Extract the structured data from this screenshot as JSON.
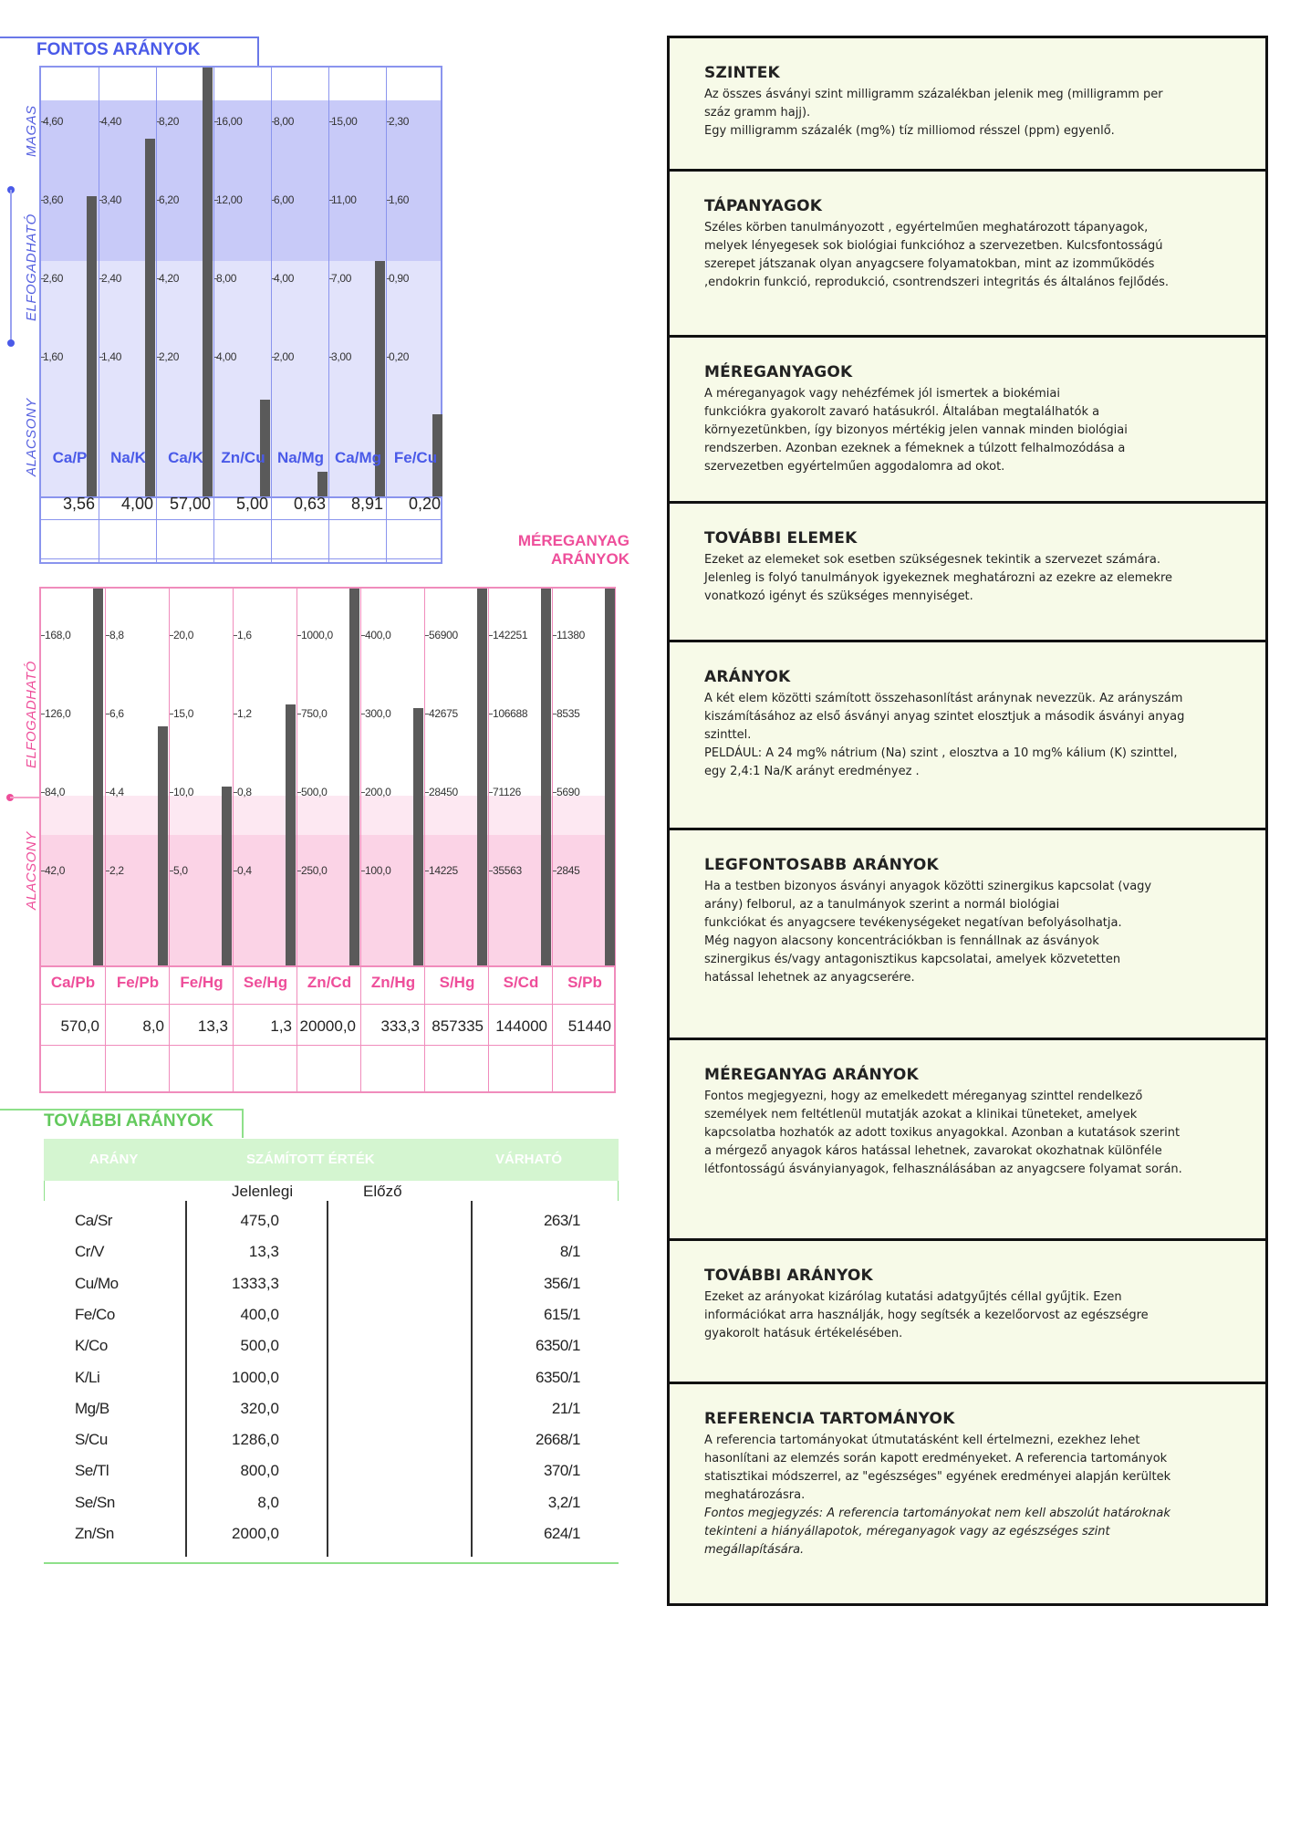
{
  "important": {
    "title": "FONTOS ARÁNYOK",
    "side_labels": [
      "MAGAS",
      "ELFOGADHATÓ",
      "ALACSONY"
    ],
    "colors": {
      "accent": "#4a5ae8",
      "band_high": "#c8caf8",
      "band_mid": "#e2e3fb",
      "bar": "#5a5a5a"
    },
    "columns": [
      {
        "name": "Ca/P",
        "ticks": [
          "4,60",
          "3,60",
          "2,60",
          "1,60"
        ],
        "value": "3,56"
      },
      {
        "name": "Na/K",
        "ticks": [
          "4,40",
          "3,40",
          "2,40",
          "1,40"
        ],
        "value": "4,00"
      },
      {
        "name": "Ca/K",
        "ticks": [
          "8,20",
          "6,20",
          "4,20",
          "2,20"
        ],
        "value": "57,00"
      },
      {
        "name": "Zn/Cu",
        "ticks": [
          "16,00",
          "12,00",
          "8,00",
          "4,00"
        ],
        "value": "5,00"
      },
      {
        "name": "Na/Mg",
        "ticks": [
          "8,00",
          "6,00",
          "4,00",
          "2,00"
        ],
        "value": "0,63"
      },
      {
        "name": "Ca/Mg",
        "ticks": [
          "15,00",
          "11,00",
          "7,00",
          "3,00"
        ],
        "value": "8,91"
      },
      {
        "name": "Fe/Cu",
        "ticks": [
          "2,30",
          "1,60",
          "0,90",
          "0,20"
        ],
        "value": "0,20"
      }
    ],
    "bar_levels": [
      0.84,
      1.0,
      1.2,
      0.27,
      0.07,
      0.66,
      0.23
    ]
  },
  "toxic": {
    "title": "MÉREGANYAG ARÁNYOK",
    "side_labels": [
      "ELFOGADHATÓ",
      "ALACSONY"
    ],
    "colors": {
      "accent": "#ee4e9a",
      "band_low": "#fbd3e6",
      "band_mid": "#fde8f2",
      "bar": "#5a5a5a"
    },
    "columns": [
      {
        "name": "Ca/Pb",
        "ticks": [
          "168,0",
          "126,0",
          "84,0",
          "42,0"
        ],
        "value": "570,0"
      },
      {
        "name": "Fe/Pb",
        "ticks": [
          "8,8",
          "6,6",
          "4,4",
          "2,2"
        ],
        "value": "8,0"
      },
      {
        "name": "Fe/Hg",
        "ticks": [
          "20,0",
          "15,0",
          "10,0",
          "5,0"
        ],
        "value": "13,3"
      },
      {
        "name": "Se/Hg",
        "ticks": [
          "1,6",
          "1,2",
          "0,8",
          "0,4"
        ],
        "value": "1,3"
      },
      {
        "name": "Zn/Cd",
        "ticks": [
          "1000,0",
          "750,0",
          "500,0",
          "250,0"
        ],
        "value": "20000,0"
      },
      {
        "name": "Zn/Hg",
        "ticks": [
          "400,0",
          "300,0",
          "200,0",
          "100,0"
        ],
        "value": "333,3"
      },
      {
        "name": "S/Hg",
        "ticks": [
          "56900",
          "42675",
          "28450",
          "14225"
        ],
        "value": "857335"
      },
      {
        "name": "S/Cd",
        "ticks": [
          "142251",
          "106688",
          "71126",
          "35563"
        ],
        "value": "144000"
      },
      {
        "name": "S/Pb",
        "ticks": [
          "11380",
          "8535",
          "5690",
          "2845"
        ],
        "value": "51440"
      }
    ],
    "bar_levels": [
      1.2,
      0.76,
      0.57,
      0.83,
      1.2,
      0.82,
      1.2,
      1.2,
      1.2
    ]
  },
  "more": {
    "title": "TOVÁBBI ARÁNYOK",
    "headers": {
      "ratio": "ARÁNY",
      "calc": "SZÁMÍTOTT ÉRTÉK",
      "expected": "VÁRHATÓ",
      "current": "Jelenlegi",
      "previous": "Előző"
    },
    "header_color": "#d4f5d0",
    "rows": [
      {
        "ratio": "Ca/Sr",
        "current": "475,0",
        "expected": "263/1"
      },
      {
        "ratio": "Cr/V",
        "current": "13,3",
        "expected": "8/1"
      },
      {
        "ratio": "Cu/Mo",
        "current": "1333,3",
        "expected": "356/1"
      },
      {
        "ratio": "Fe/Co",
        "current": "400,0",
        "expected": "615/1"
      },
      {
        "ratio": "K/Co",
        "current": "500,0",
        "expected": "6350/1"
      },
      {
        "ratio": "K/Li",
        "current": "1000,0",
        "expected": "6350/1"
      },
      {
        "ratio": "Mg/B",
        "current": "320,0",
        "expected": "21/1"
      },
      {
        "ratio": "S/Cu",
        "current": "1286,0",
        "expected": "2668/1"
      },
      {
        "ratio": "Se/Tl",
        "current": "800,0",
        "expected": "370/1"
      },
      {
        "ratio": "Se/Sn",
        "current": "8,0",
        "expected": "3,2/1"
      },
      {
        "ratio": "Zn/Sn",
        "current": "2000,0",
        "expected": "624/1"
      }
    ]
  },
  "info_boxes": [
    {
      "title": "SZINTEK",
      "text": "Az összes ásványi szint milligramm százalékban jelenik meg (milligramm per\nszáz gramm hajj).\nEgy milligramm százalék (mg%) tíz milliomod résszel (ppm) egyenlő."
    },
    {
      "title": "TÁPANYAGOK",
      "text": "Széles körben tanulmányozott , egyértelműen meghatározott tápanyagok,\nmelyek lényegesek sok biológiai funkcióhoz a szervezetben. Kulcsfontosságú\nszerepet játszanak olyan anyagcsere folyamatokban, mint az izomműködés\n,endokrin funkció, reprodukció, csontrendszeri integritás és általános fejlődés."
    },
    {
      "title": "MÉREGANYAGOK",
      "text": "A méreganyagok vagy nehézfémek jól ismertek a biokémiai\nfunkciókra gyakorolt zavaró hatásukról. Általában megtalálhatók a\nkörnyezetünkben, így bizonyos mértékig jelen vannak minden biológiai\nrendszerben. Azonban ezeknek a fémeknek a túlzott felhalmozódása a\nszervezetben egyértelműen aggodalomra ad okot."
    },
    {
      "title": "TOVÁBBI ELEMEK",
      "text": "Ezeket az elemeket sok esetben szükségesnek tekintik a szervezet számára.\nJelenleg is folyó tanulmányok igyekeznek meghatározni az ezekre az elemekre\nvonatkozó igényt és szükséges mennyiséget."
    },
    {
      "title": "ARÁNYOK",
      "text": "A két elem közötti számított összehasonlítást aránynak nevezzük. Az arányszám\nkiszámításához az első ásványi anyag  szintet elosztjuk a második ásványi anyag\nszinttel.\nPELDÁUL:  A 24 mg% nátrium (Na) szint , elosztva a 10 mg% kálium (K) szinttel,\negy 2,4:1 Na/K arányt eredményez ."
    },
    {
      "title": "LEGFONTOSABB ARÁNYOK",
      "text": "Ha a testben bizonyos ásványi anyagok közötti szinergikus kapcsolat (vagy\narány) felborul, az a tanulmányok szerint a normál biológiai\nfunkciókat és anyagcsere tevékenységeket negatívan befolyásolhatja.\nMég nagyon alacsony koncentrációkban is fennállnak az ásványok\nszinergikus és/vagy antagonisztikus kapcsolatai, amelyek közvetetten\nhatással lehetnek az anyagcserére."
    },
    {
      "title": "MÉREGANYAG ARÁNYOK",
      "text": "Fontos megjegyezni, hogy az emelkedett méreganyag szinttel rendelkező\nszemélyek nem feltétlenül mutatják azokat a klinikai tüneteket, amelyek\nkapcsolatba hozhatók az adott toxikus anyagokkal. Azonban a kutatások szerint\na mérgező anyagok káros hatással lehetnek, zavarokat okozhatnak különféle\nlétfontosságú ásványianyagok, felhasználásában az anyagcsere folyamat során."
    },
    {
      "title": "TOVÁBBI ARÁNYOK",
      "text": "Ezeket az arányokat kizárólag kutatási adatgyűjtés céllal gyűjtik. Ezen\ninformációkat arra használják, hogy segítsék a kezelőorvost az egészségre\ngyakorolt hatásuk értékelésében."
    },
    {
      "title": "REFERENCIA TARTOMÁNYOK",
      "text": "A referencia tartományokat útmutatásként kell értelmezni, ezekhez lehet\nhasonlítani az elemzés során kapott eredményeket. A referencia tartományok\nstatisztikai módszerrel,  az \"egészséges\" egyének eredményei alapján kerültek\nmeghatározásra.",
      "note": "Fontos megjegyzés: A referencia tartományokat nem kell abszolút határoknak\ntekinteni a hiányállapotok, méreganyagok vagy az egészséges szint\nmegállapítására."
    }
  ]
}
